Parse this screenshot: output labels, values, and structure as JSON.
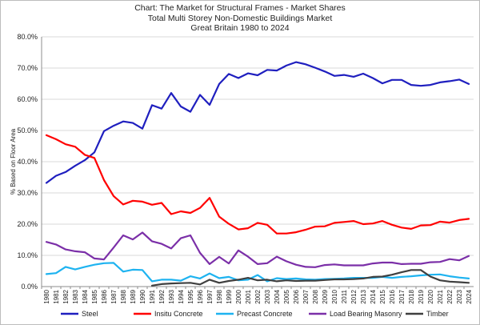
{
  "chart_data": {
    "type": "line",
    "title": "Chart: The Market for Structural Frames - Market Shares",
    "subtitle": "Total Multi Storey Non-Domestic Buildings Market",
    "subtitle2": "Great Britain 1980 to 2024",
    "xlabel": "",
    "ylabel": "% Based on Floor Area",
    "ylim": [
      0,
      80
    ],
    "yticks": [
      "0.0%",
      "10.0%",
      "20.0%",
      "30.0%",
      "40.0%",
      "50.0%",
      "60.0%",
      "70.0%",
      "80.0%"
    ],
    "grid": true,
    "legend_position": "bottom",
    "x": [
      "1980",
      "1981",
      "1982",
      "1983",
      "1984",
      "1985",
      "1986",
      "1987",
      "1988",
      "1989",
      "1990",
      "1991",
      "1992",
      "1993",
      "1994",
      "1995",
      "1996",
      "1997",
      "1998",
      "1999",
      "2000",
      "2001",
      "2002",
      "2003",
      "2004",
      "2005",
      "2006",
      "2007",
      "2008",
      "2009",
      "2010",
      "2011",
      "2012",
      "2013",
      "2014",
      "2015",
      "2016",
      "2017",
      "2018",
      "2019",
      "2020",
      "2021",
      "2022",
      "2023",
      "2024"
    ],
    "series": [
      {
        "name": "Steel",
        "color": "#1f1fbf",
        "values": [
          33.2,
          35.5,
          36.7,
          38.7,
          40.5,
          43.0,
          49.8,
          51.5,
          52.9,
          52.4,
          50.6,
          58.1,
          57.0,
          62.0,
          57.7,
          56.0,
          61.4,
          58.2,
          64.9,
          68.1,
          66.8,
          68.3,
          67.7,
          69.4,
          69.2,
          70.8,
          71.9,
          71.2,
          70.1,
          68.9,
          67.5,
          67.8,
          67.2,
          68.2,
          66.8,
          65.1,
          66.2,
          66.2,
          64.6,
          64.3,
          64.6,
          65.4,
          65.8,
          66.3,
          64.9
        ]
      },
      {
        "name": "Insitu Concrete",
        "color": "#ff0000",
        "values": [
          48.5,
          47.2,
          45.6,
          44.8,
          42.2,
          41.2,
          34.1,
          29.0,
          26.3,
          27.5,
          27.2,
          26.2,
          26.8,
          23.2,
          24.1,
          23.6,
          25.2,
          28.4,
          22.4,
          20.1,
          18.3,
          18.7,
          20.4,
          19.8,
          17.0,
          17.0,
          17.4,
          18.2,
          19.2,
          19.3,
          20.4,
          20.7,
          21.0,
          20.0,
          20.2,
          21.0,
          19.8,
          18.9,
          18.5,
          19.6,
          19.7,
          20.8,
          20.5,
          21.3,
          21.7
        ]
      },
      {
        "name": "Precast Concrete",
        "color": "#1eb3f0",
        "values": [
          4.0,
          4.3,
          6.3,
          5.5,
          6.3,
          7.0,
          7.5,
          7.6,
          4.8,
          5.4,
          5.3,
          1.7,
          2.2,
          2.2,
          1.9,
          3.3,
          2.6,
          4.2,
          2.7,
          3.1,
          2.0,
          2.2,
          3.7,
          1.7,
          2.7,
          2.4,
          2.6,
          2.3,
          2.2,
          2.4,
          2.5,
          2.6,
          2.8,
          2.8,
          2.8,
          3.1,
          2.8,
          3.1,
          3.3,
          3.6,
          3.8,
          3.9,
          3.3,
          2.9,
          2.6
        ]
      },
      {
        "name": "Load Bearing Masonry",
        "color": "#7b2fa8",
        "values": [
          14.3,
          13.5,
          11.9,
          11.3,
          11.0,
          9.0,
          8.7,
          12.5,
          16.4,
          15.1,
          17.3,
          14.5,
          13.7,
          12.2,
          15.5,
          16.4,
          10.8,
          7.2,
          9.5,
          7.4,
          11.6,
          9.6,
          7.2,
          7.5,
          9.6,
          8.1,
          7.0,
          6.3,
          6.2,
          6.9,
          7.1,
          6.8,
          6.8,
          6.8,
          7.4,
          7.7,
          7.7,
          7.2,
          7.3,
          7.3,
          7.8,
          7.9,
          8.8,
          8.4,
          9.8
        ]
      },
      {
        "name": "Timber",
        "color": "#3f3f3f",
        "values": [
          null,
          null,
          null,
          null,
          null,
          null,
          null,
          null,
          null,
          null,
          null,
          0.3,
          0.8,
          1.0,
          1.1,
          1.2,
          0.7,
          2.2,
          1.2,
          1.8,
          2.2,
          2.8,
          2.0,
          2.2,
          1.7,
          2.0,
          1.8,
          1.9,
          1.9,
          2.1,
          2.3,
          2.3,
          2.4,
          2.6,
          3.1,
          3.2,
          3.8,
          4.6,
          5.3,
          5.3,
          3.2,
          2.0,
          1.6,
          1.4,
          1.2
        ]
      }
    ]
  }
}
